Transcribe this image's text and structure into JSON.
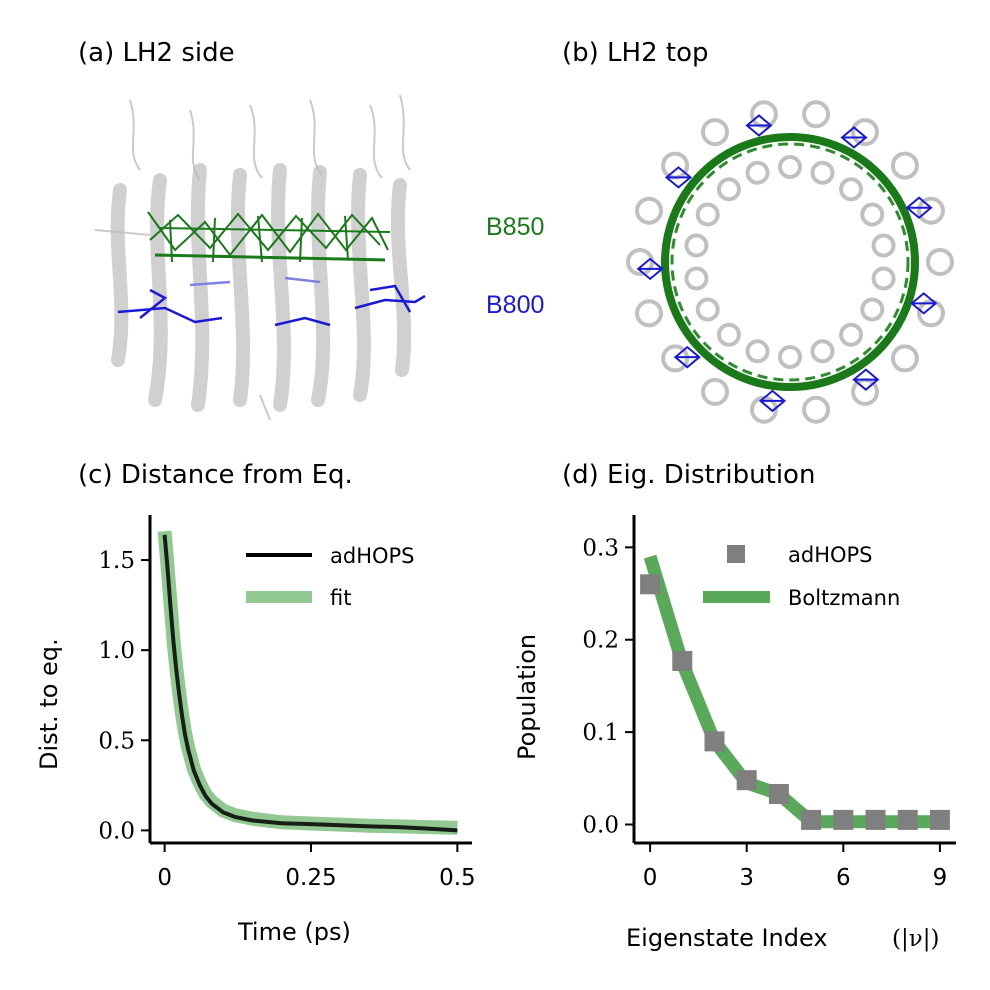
{
  "panels": {
    "a_title": "(a) LH2 side",
    "b_title": "(b) LH2 top",
    "c_title": "(c) Distance from Eq.",
    "d_title": "(d) Eig. Distribution"
  },
  "structure_labels": {
    "b850": "B850",
    "b800": "B800",
    "b850_color": "#1a7a1a",
    "b800_color": "#1a1ad6",
    "protein_color": "#c8c8c8"
  },
  "chart_data": [
    {
      "type": "line",
      "title": "(c) Distance from Eq.",
      "xlabel": "Time (ps)",
      "ylabel": "Dist. to eq.",
      "xlim": [
        -0.025,
        0.525
      ],
      "ylim": [
        -0.07,
        1.75
      ],
      "xticks": [
        0,
        0.25,
        0.5
      ],
      "xtick_labels": [
        "0",
        "0.25",
        "0.5"
      ],
      "yticks": [
        0.0,
        0.5,
        1.0,
        1.5
      ],
      "ytick_labels": [
        "0.0",
        "0.5",
        "1.0",
        "1.5"
      ],
      "legend_position": "top-right",
      "series": [
        {
          "name": "fit",
          "color": "#7fbf7f",
          "x": [
            0,
            0.005,
            0.01,
            0.015,
            0.02,
            0.025,
            0.03,
            0.035,
            0.04,
            0.05,
            0.06,
            0.07,
            0.08,
            0.1,
            0.12,
            0.15,
            0.2,
            0.25,
            0.3,
            0.35,
            0.4,
            0.45,
            0.5
          ],
          "y": [
            1.66,
            1.46,
            1.26,
            1.06,
            0.9,
            0.76,
            0.64,
            0.54,
            0.46,
            0.34,
            0.26,
            0.2,
            0.16,
            0.11,
            0.085,
            0.065,
            0.045,
            0.038,
            0.032,
            0.026,
            0.022,
            0.018,
            0.015
          ]
        },
        {
          "name": "adHOPS",
          "color": "#000000",
          "x": [
            0,
            0.005,
            0.01,
            0.015,
            0.02,
            0.025,
            0.03,
            0.035,
            0.04,
            0.05,
            0.06,
            0.07,
            0.08,
            0.1,
            0.12,
            0.15,
            0.2,
            0.25,
            0.3,
            0.35,
            0.4,
            0.45,
            0.5
          ],
          "y": [
            1.64,
            1.45,
            1.24,
            1.05,
            0.89,
            0.75,
            0.63,
            0.53,
            0.45,
            0.33,
            0.25,
            0.19,
            0.15,
            0.1,
            0.075,
            0.055,
            0.04,
            0.035,
            0.028,
            0.022,
            0.018,
            0.01,
            0.0
          ]
        }
      ]
    },
    {
      "type": "scatter",
      "title": "(d) Eig. Distribution",
      "xlabel": "Eigenstate Index",
      "xlabel_math": "(|ν|)",
      "ylabel": "Population",
      "xlim": [
        -0.5,
        9.5
      ],
      "ylim": [
        -0.02,
        0.335
      ],
      "xticks": [
        0,
        3,
        6,
        9
      ],
      "xtick_labels": [
        "0",
        "3",
        "6",
        "9"
      ],
      "yticks": [
        0.0,
        0.1,
        0.2,
        0.3
      ],
      "ytick_labels": [
        "0.0",
        "0.1",
        "0.2",
        "0.3"
      ],
      "legend_position": "top-right",
      "series": [
        {
          "name": "adHOPS",
          "marker": "square",
          "color": "#7f7f7f",
          "x": [
            0,
            1,
            2,
            3,
            4,
            5,
            6,
            7,
            8,
            9
          ],
          "y": [
            0.26,
            0.177,
            0.09,
            0.048,
            0.033,
            0.005,
            0.005,
            0.005,
            0.005,
            0.005
          ]
        },
        {
          "name": "Boltzmann",
          "line": true,
          "color": "#5aa85a",
          "x": [
            0,
            1,
            2,
            3,
            4,
            5,
            6,
            7,
            8,
            9
          ],
          "y": [
            0.29,
            0.175,
            0.09,
            0.045,
            0.033,
            0.003,
            0.003,
            0.003,
            0.003,
            0.003
          ]
        }
      ]
    }
  ]
}
